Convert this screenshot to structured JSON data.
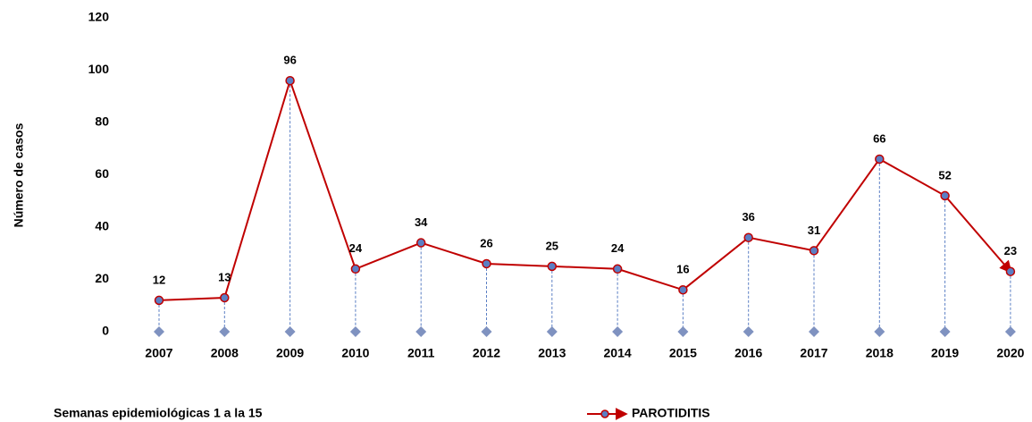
{
  "chart_data": {
    "type": "line",
    "y_label": "Número de casos",
    "note": "Semanas epidemiológicas 1 a la 15",
    "categories": [
      "2007",
      "2008",
      "2009",
      "2010",
      "2011",
      "2012",
      "2013",
      "2014",
      "2015",
      "2016",
      "2017",
      "2018",
      "2019",
      "2020"
    ],
    "series": [
      {
        "name": "PAROTIDITIS",
        "color": "#c00000",
        "marker_color": "#5b7fc4",
        "values": [
          12,
          13,
          96,
          24,
          34,
          26,
          25,
          24,
          16,
          36,
          31,
          66,
          52,
          23
        ]
      }
    ],
    "ylim": [
      0,
      120
    ],
    "yticks": [
      0,
      20,
      40,
      60,
      80,
      100,
      120
    ],
    "grid": false,
    "legend": "bottom"
  }
}
